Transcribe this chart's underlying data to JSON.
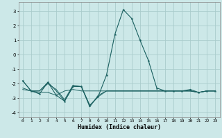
{
  "xlabel": "Humidex (Indice chaleur)",
  "background_color": "#cce8e8",
  "grid_color": "#aacccc",
  "line_color": "#1a6060",
  "xlim": [
    -0.5,
    23.5
  ],
  "ylim": [
    -4.3,
    3.6
  ],
  "yticks": [
    -4,
    -3,
    -2,
    -1,
    0,
    1,
    2,
    3
  ],
  "xticks": [
    0,
    1,
    2,
    3,
    4,
    5,
    6,
    7,
    8,
    9,
    10,
    11,
    12,
    13,
    14,
    15,
    16,
    17,
    18,
    19,
    20,
    21,
    22,
    23
  ],
  "series": [
    {
      "x": [
        0,
        1,
        2,
        3,
        4,
        5,
        6,
        7,
        8,
        9,
        10,
        11,
        12,
        13,
        14,
        15,
        16,
        17,
        18,
        19,
        20,
        21,
        22,
        23
      ],
      "y": [
        -1.8,
        -2.5,
        -2.7,
        -1.9,
        -2.8,
        -3.2,
        -2.2,
        -2.2,
        -3.5,
        -2.9,
        -1.4,
        1.4,
        3.1,
        2.5,
        1.0,
        -0.4,
        -2.3,
        -2.5,
        -2.5,
        -2.5,
        -2.4,
        -2.6,
        -2.5,
        -2.5
      ],
      "marker": true
    },
    {
      "x": [
        0,
        1,
        2,
        3,
        4,
        5,
        6,
        7,
        8,
        9,
        10,
        11,
        12,
        13,
        14,
        15,
        16,
        17,
        18,
        19,
        20,
        21,
        22,
        23
      ],
      "y": [
        -2.4,
        -2.5,
        -2.6,
        -2.6,
        -2.8,
        -2.5,
        -2.4,
        -2.5,
        -2.5,
        -2.5,
        -2.5,
        -2.5,
        -2.5,
        -2.5,
        -2.5,
        -2.5,
        -2.5,
        -2.5,
        -2.5,
        -2.5,
        -2.5,
        -2.6,
        -2.5,
        -2.5
      ],
      "marker": false
    },
    {
      "x": [
        0,
        1,
        2,
        3,
        4,
        5,
        6,
        7,
        8,
        9,
        10,
        11,
        12,
        13,
        14,
        15,
        16,
        17,
        18,
        19,
        20,
        21,
        22,
        23
      ],
      "y": [
        -2.3,
        -2.5,
        -2.5,
        -2.0,
        -2.4,
        -3.1,
        -2.1,
        -2.2,
        -3.6,
        -2.8,
        -2.5,
        -2.5,
        -2.5,
        -2.5,
        -2.5,
        -2.5,
        -2.5,
        -2.5,
        -2.5,
        -2.5,
        -2.5,
        -2.6,
        -2.5,
        -2.5
      ],
      "marker": false
    },
    {
      "x": [
        0,
        1,
        2,
        3,
        4,
        5,
        6,
        7,
        8,
        9,
        10,
        11,
        12,
        13,
        14,
        15,
        16,
        17,
        18,
        19,
        20,
        21,
        22,
        23
      ],
      "y": [
        -1.8,
        -2.5,
        -2.5,
        -1.9,
        -2.5,
        -3.2,
        -2.2,
        -2.2,
        -3.5,
        -2.9,
        -2.5,
        -2.5,
        -2.5,
        -2.5,
        -2.5,
        -2.5,
        -2.5,
        -2.5,
        -2.5,
        -2.5,
        -2.5,
        -2.6,
        -2.5,
        -2.5
      ],
      "marker": false
    }
  ],
  "xticklabels": [
    "0",
    "1",
    "2",
    "3",
    "4",
    "5",
    "6",
    "7",
    "8",
    "9",
    "10",
    "11",
    "12",
    "13",
    "14",
    "15",
    "16",
    "17",
    "18",
    "19",
    "20",
    "21",
    "22",
    "23"
  ]
}
